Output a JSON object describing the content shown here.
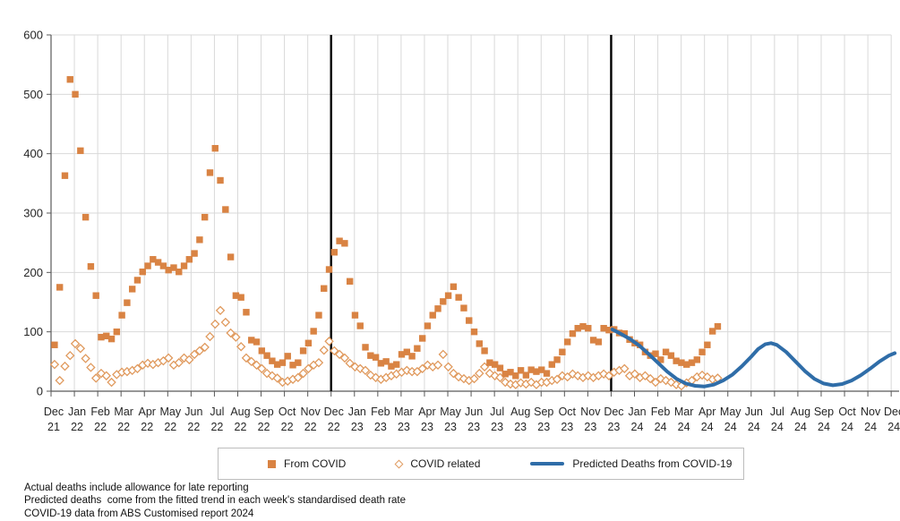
{
  "colors": {
    "from_covid": "#d98343",
    "covid_related": "#e09a5e",
    "predicted": "#2f6da8",
    "gridline": "#d9d9d9",
    "axis": "#595959",
    "separator": "#000000",
    "label": "#262626"
  },
  "legend": {
    "items": [
      {
        "label": "From COVID",
        "swatch": "filled-square"
      },
      {
        "label": "COVID related",
        "swatch": "open-diamond"
      },
      {
        "label": "Predicted Deaths from COVID-19",
        "swatch": "line"
      }
    ]
  },
  "notes": [
    "Actual deaths include allowance for late reporting",
    "Predicted deaths  come from the fitted trend in each week's standardised death rate",
    "COVID-19 data from ABS Customised report 2024"
  ],
  "chart_data": {
    "type": "scatter",
    "title": "",
    "xlabel": "",
    "ylabel": "",
    "ylim": [
      0,
      600
    ],
    "y_ticks": [
      0,
      100,
      200,
      300,
      400,
      500,
      600
    ],
    "grid": true,
    "legend_position": "bottom",
    "x_tick_labels": [
      [
        "Dec",
        "21"
      ],
      [
        "Jan",
        "22"
      ],
      [
        "Feb",
        "22"
      ],
      [
        "Mar",
        "22"
      ],
      [
        "Apr",
        "22"
      ],
      [
        "May",
        "22"
      ],
      [
        "Jun",
        "22"
      ],
      [
        "Jul",
        "22"
      ],
      [
        "Aug",
        "22"
      ],
      [
        "Sep",
        "22"
      ],
      [
        "Oct",
        "22"
      ],
      [
        "Nov",
        "22"
      ],
      [
        "Dec",
        "22"
      ],
      [
        "Jan",
        "23"
      ],
      [
        "Feb",
        "23"
      ],
      [
        "Mar",
        "23"
      ],
      [
        "Apr",
        "23"
      ],
      [
        "May",
        "23"
      ],
      [
        "Jun",
        "23"
      ],
      [
        "Jul",
        "23"
      ],
      [
        "Aug",
        "23"
      ],
      [
        "Sep",
        "23"
      ],
      [
        "Oct",
        "23"
      ],
      [
        "Nov",
        "23"
      ],
      [
        "Dec",
        "23"
      ],
      [
        "Jan",
        "24"
      ],
      [
        "Feb",
        "24"
      ],
      [
        "Mar",
        "24"
      ],
      [
        "Apr",
        "24"
      ],
      [
        "May",
        "24"
      ],
      [
        "Jun",
        "24"
      ],
      [
        "Jul",
        "24"
      ],
      [
        "Aug",
        "24"
      ],
      [
        "Sep",
        "24"
      ],
      [
        "Oct",
        "24"
      ],
      [
        "Nov",
        "24"
      ],
      [
        "Dec",
        "24"
      ]
    ],
    "separator_months": [
      12,
      24
    ],
    "weekly_x": {
      "start_month": 0.15,
      "step_month": 0.222
    },
    "series": [
      {
        "name": "From COVID",
        "marker": "filled-square",
        "cadence": "weekly",
        "values": [
          78,
          175,
          363,
          525,
          500,
          405,
          293,
          210,
          161,
          91,
          93,
          88,
          100,
          128,
          149,
          172,
          187,
          201,
          211,
          222,
          217,
          211,
          204,
          208,
          201,
          211,
          222,
          232,
          255,
          293,
          368,
          409,
          355,
          306,
          226,
          161,
          158,
          133,
          86,
          83,
          68,
          60,
          51,
          45,
          48,
          59,
          44,
          48,
          68,
          81,
          101,
          128,
          173,
          205,
          234,
          253,
          249,
          185,
          128,
          110,
          74,
          60,
          57,
          47,
          50,
          42,
          45,
          62,
          66,
          59,
          72,
          89,
          110,
          128,
          139,
          151,
          161,
          176,
          158,
          140,
          119,
          100,
          80,
          68,
          48,
          45,
          39,
          29,
          32,
          26,
          35,
          27,
          36,
          33,
          36,
          30,
          45,
          53,
          66,
          83,
          97,
          106,
          109,
          106,
          86,
          83,
          106,
          103,
          104,
          98,
          97,
          87,
          81,
          78,
          66,
          60,
          63,
          53,
          66,
          60,
          51,
          48,
          45,
          48,
          53,
          66,
          78,
          101,
          109
        ]
      },
      {
        "name": "COVID related",
        "marker": "open-diamond",
        "cadence": "weekly",
        "values": [
          45,
          18,
          42,
          60,
          80,
          72,
          55,
          40,
          22,
          30,
          26,
          15,
          28,
          32,
          33,
          35,
          38,
          44,
          47,
          45,
          48,
          51,
          56,
          44,
          48,
          56,
          53,
          62,
          68,
          74,
          92,
          113,
          136,
          116,
          98,
          91,
          75,
          56,
          50,
          44,
          38,
          30,
          26,
          22,
          15,
          17,
          20,
          23,
          30,
          38,
          44,
          48,
          69,
          84,
          68,
          62,
          56,
          47,
          41,
          38,
          35,
          27,
          23,
          20,
          23,
          26,
          29,
          32,
          35,
          33,
          33,
          38,
          44,
          41,
          44,
          62,
          41,
          30,
          24,
          21,
          18,
          21,
          30,
          41,
          30,
          26,
          23,
          15,
          12,
          11,
          14,
          12,
          15,
          11,
          15,
          15,
          18,
          20,
          26,
          24,
          29,
          26,
          23,
          26,
          23,
          26,
          29,
          26,
          32,
          35,
          38,
          26,
          29,
          23,
          26,
          21,
          15,
          21,
          18,
          15,
          11,
          9,
          14,
          18,
          24,
          27,
          24,
          20,
          22
        ]
      },
      {
        "name": "Predicted Deaths from COVID-19",
        "marker": "line",
        "cadence": "monthly-curve",
        "points": [
          [
            24.05,
            104
          ],
          [
            24.4,
            97
          ],
          [
            24.8,
            88
          ],
          [
            25.2,
            77
          ],
          [
            25.6,
            63
          ],
          [
            26.0,
            48
          ],
          [
            26.4,
            33
          ],
          [
            26.8,
            21
          ],
          [
            27.2,
            13
          ],
          [
            27.6,
            9
          ],
          [
            28.0,
            8
          ],
          [
            28.4,
            11
          ],
          [
            28.8,
            18
          ],
          [
            29.2,
            28
          ],
          [
            29.6,
            42
          ],
          [
            30.0,
            58
          ],
          [
            30.3,
            71
          ],
          [
            30.6,
            79
          ],
          [
            30.85,
            81
          ],
          [
            31.1,
            78
          ],
          [
            31.5,
            66
          ],
          [
            31.9,
            50
          ],
          [
            32.3,
            34
          ],
          [
            32.7,
            21
          ],
          [
            33.1,
            13
          ],
          [
            33.5,
            10
          ],
          [
            33.9,
            12
          ],
          [
            34.3,
            18
          ],
          [
            34.7,
            27
          ],
          [
            35.1,
            38
          ],
          [
            35.5,
            50
          ],
          [
            35.9,
            60
          ],
          [
            36.15,
            64
          ]
        ]
      }
    ]
  }
}
